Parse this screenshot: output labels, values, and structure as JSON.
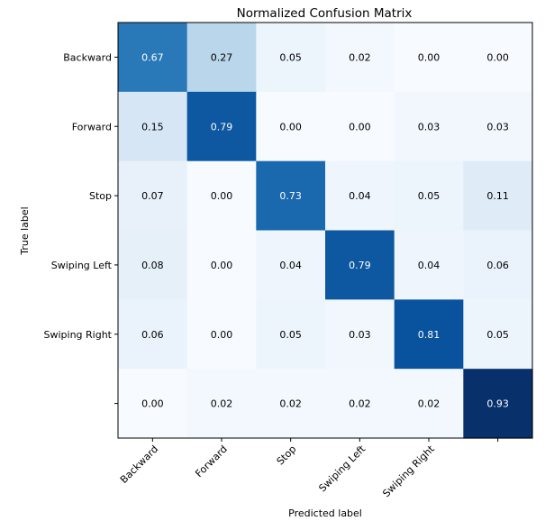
{
  "chart_data": {
    "type": "heatmap",
    "title": "Normalized Confusion Matrix",
    "xlabel": "Predicted label",
    "ylabel": "True label",
    "x_categories": [
      "Backward",
      "Forward",
      "Stop",
      "Swiping Left",
      "Swiping Right",
      ""
    ],
    "y_categories": [
      "Backward",
      "Forward",
      "Stop",
      "Swiping Left",
      "Swiping Right",
      ""
    ],
    "values": [
      [
        0.67,
        0.27,
        0.05,
        0.02,
        0.0,
        0.0
      ],
      [
        0.15,
        0.79,
        0.0,
        0.0,
        0.03,
        0.03
      ],
      [
        0.07,
        0.0,
        0.73,
        0.04,
        0.05,
        0.11
      ],
      [
        0.08,
        0.0,
        0.04,
        0.79,
        0.04,
        0.06
      ],
      [
        0.06,
        0.0,
        0.05,
        0.03,
        0.81,
        0.05
      ],
      [
        0.0,
        0.02,
        0.02,
        0.02,
        0.02,
        0.93
      ]
    ],
    "value_labels": [
      [
        "0.67",
        "0.27",
        "0.05",
        "0.02",
        "0.00",
        "0.00"
      ],
      [
        "0.15",
        "0.79",
        "0.00",
        "0.00",
        "0.03",
        "0.03"
      ],
      [
        "0.07",
        "0.00",
        "0.73",
        "0.04",
        "0.05",
        "0.11"
      ],
      [
        "0.08",
        "0.00",
        "0.04",
        "0.79",
        "0.04",
        "0.06"
      ],
      [
        "0.06",
        "0.00",
        "0.05",
        "0.03",
        "0.81",
        "0.05"
      ],
      [
        "0.00",
        "0.02",
        "0.02",
        "0.02",
        "0.02",
        "0.93"
      ]
    ],
    "colormap": "Blues",
    "color_range": [
      0,
      0.93
    ],
    "grid": false
  }
}
